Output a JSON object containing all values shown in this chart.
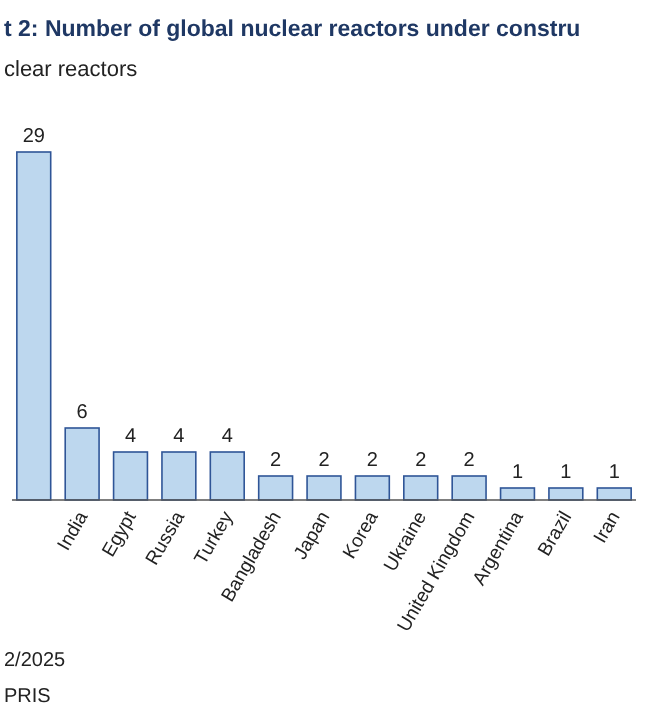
{
  "chart_data": {
    "type": "bar",
    "title": "t 2: Number of global nuclear reactors under constru",
    "subtitle": "clear reactors",
    "categories": [
      null,
      "India",
      "Egypt",
      "Russia",
      "Turkey",
      "Bangladesh",
      "Japan",
      "Korea",
      "Ukraine",
      "United Kingdom",
      "Argentina",
      "Brazil",
      "Iran"
    ],
    "values": [
      29,
      6,
      4,
      4,
      4,
      2,
      2,
      2,
      2,
      2,
      1,
      1,
      1
    ],
    "data_labels": true,
    "color": "#bdd7ee",
    "annotations": [
      "2/2025",
      "PRIS"
    ]
  }
}
